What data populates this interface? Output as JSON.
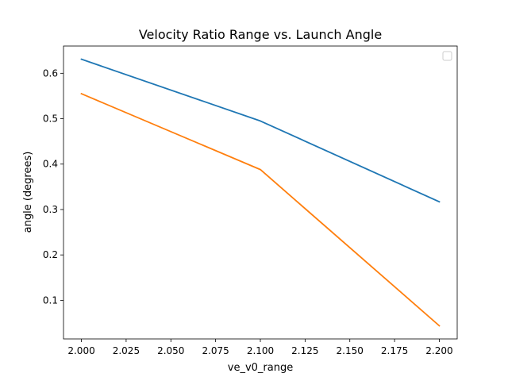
{
  "chart_data": {
    "type": "line",
    "title": "Velocity Ratio Range vs. Launch Angle",
    "xlabel": "ve_v0_range",
    "ylabel": "angle (degrees)",
    "x": [
      2.0,
      2.1,
      2.2
    ],
    "series": [
      {
        "values": [
          0.631,
          0.495,
          0.317
        ],
        "color": "#1f77b4"
      },
      {
        "values": [
          0.555,
          0.388,
          0.044
        ],
        "color": "#ff7f0e"
      }
    ],
    "xlim": [
      1.99,
      2.21
    ],
    "ylim": [
      0.015,
      0.66
    ],
    "xticks": [
      2.0,
      2.025,
      2.05,
      2.075,
      2.1,
      2.125,
      2.15,
      2.175,
      2.2
    ],
    "xtick_labels": [
      "2.000",
      "2.025",
      "2.050",
      "2.075",
      "2.100",
      "2.125",
      "2.150",
      "2.175",
      "2.200"
    ],
    "yticks": [
      0.1,
      0.2,
      0.3,
      0.4,
      0.5,
      0.6
    ],
    "ytick_labels": [
      "0.1",
      "0.2",
      "0.3",
      "0.4",
      "0.5",
      "0.6"
    ],
    "grid": false,
    "legend": {
      "placement": "upper-right",
      "entries": []
    }
  }
}
